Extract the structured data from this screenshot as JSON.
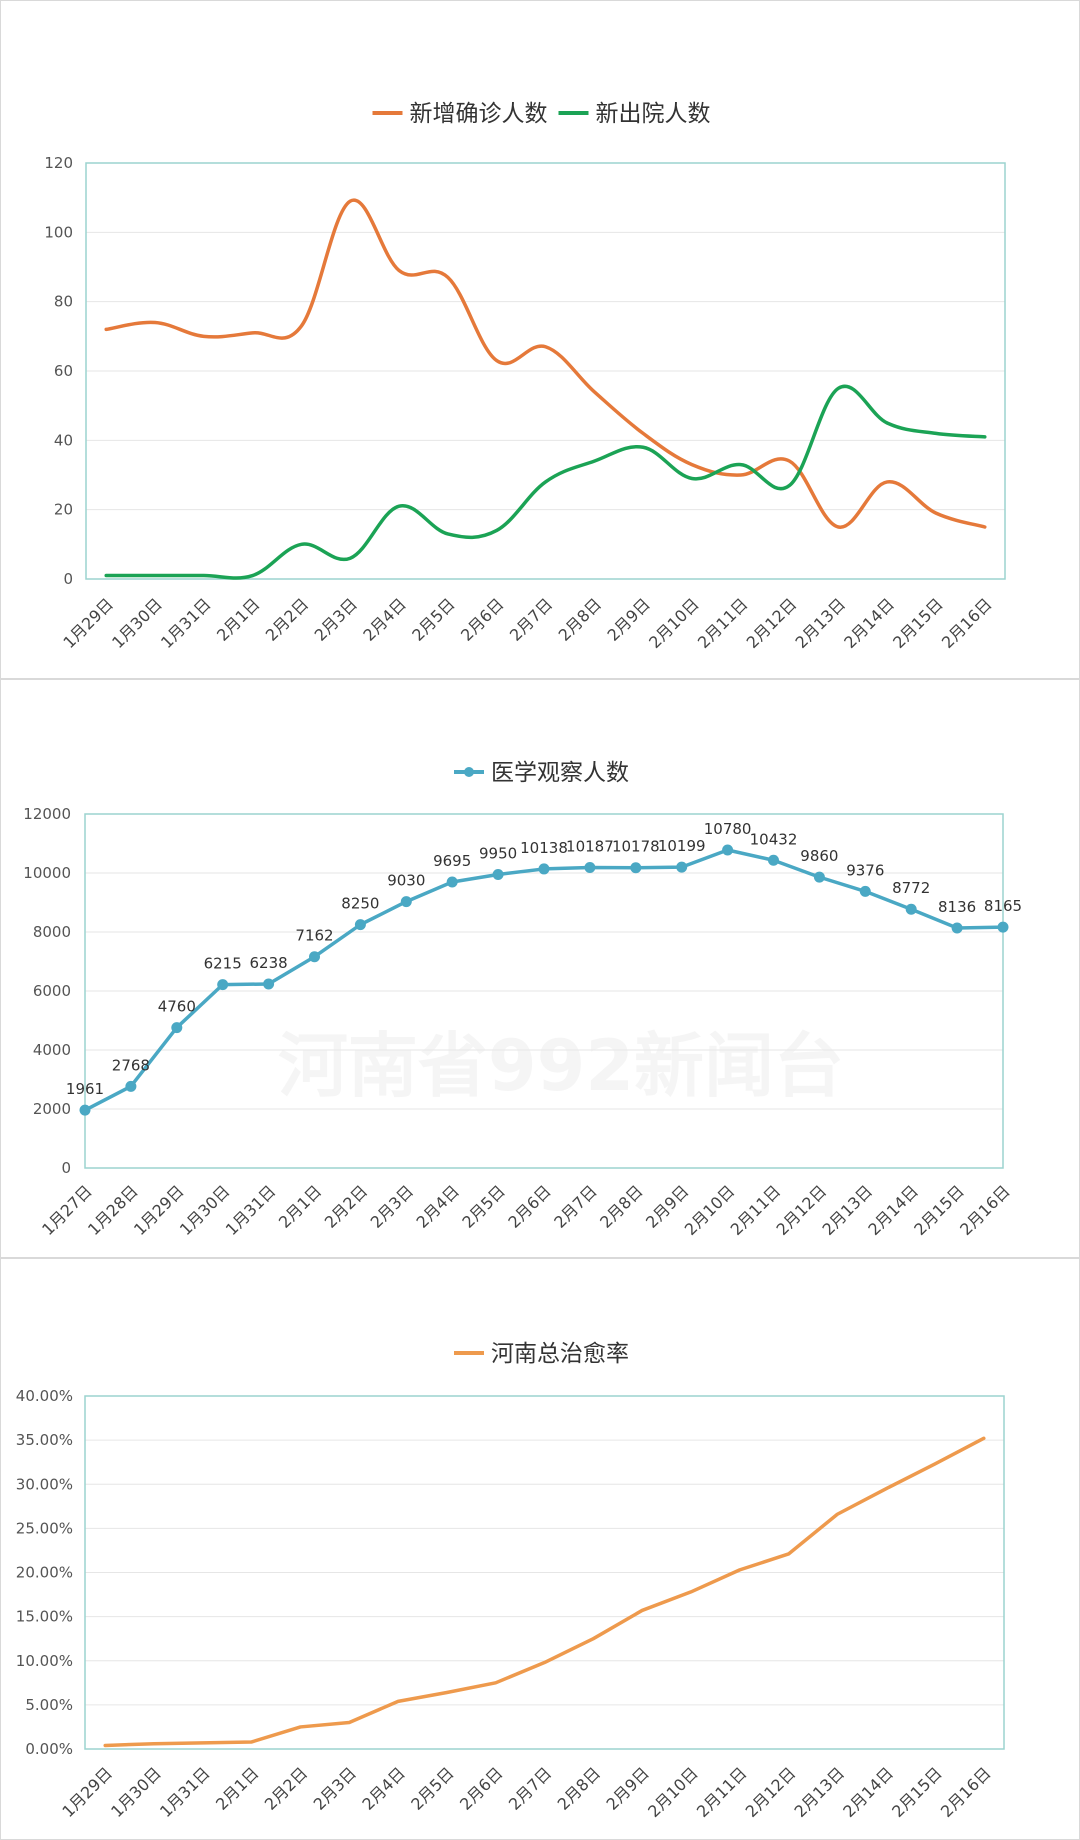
{
  "colors": {
    "orange": "#E5793A",
    "green": "#1BA355",
    "teal": "#4AA8C4",
    "light_orange": "#EE9A4D",
    "plot_border": "#9CD3CF",
    "grid": "#E6E6E6"
  },
  "watermark": "河南省992新闻台",
  "chart_data": [
    {
      "type": "line",
      "smooth": true,
      "legend_position": "top",
      "grid": true,
      "categories": [
        "1月29日",
        "1月30日",
        "1月31日",
        "2月1日",
        "2月2日",
        "2月3日",
        "2月4日",
        "2月5日",
        "2月6日",
        "2月7日",
        "2月8日",
        "2月9日",
        "2月10日",
        "2月11日",
        "2月12日",
        "2月13日",
        "2月14日",
        "2月15日",
        "2月16日"
      ],
      "yticks": [
        "0",
        "20",
        "40",
        "60",
        "80",
        "100",
        "120"
      ],
      "ylim": [
        0,
        120
      ],
      "series": [
        {
          "name": "新增确诊人数",
          "color": "#E5793A",
          "values": [
            72,
            74,
            70,
            71,
            73,
            109,
            89,
            87,
            63,
            67,
            54,
            42,
            33,
            30,
            34,
            15,
            28,
            19,
            15
          ]
        },
        {
          "name": "新出院人数",
          "color": "#1BA355",
          "values": [
            1,
            1,
            1,
            1,
            10,
            6,
            21,
            13,
            14,
            28,
            34,
            38,
            29,
            33,
            27,
            55,
            45,
            42,
            41
          ]
        }
      ]
    },
    {
      "type": "line",
      "markers": true,
      "legend_position": "top",
      "grid": true,
      "categories": [
        "1月27日",
        "1月28日",
        "1月29日",
        "1月30日",
        "1月31日",
        "2月1日",
        "2月2日",
        "2月3日",
        "2月4日",
        "2月5日",
        "2月6日",
        "2月7日",
        "2月8日",
        "2月9日",
        "2月10日",
        "2月11日",
        "2月12日",
        "2月13日",
        "2月14日",
        "2月15日",
        "2月16日"
      ],
      "yticks": [
        "0",
        "2000",
        "4000",
        "6000",
        "8000",
        "10000",
        "12000"
      ],
      "ylim": [
        0,
        12000
      ],
      "series": [
        {
          "name": "医学观察人数",
          "color": "#4AA8C4",
          "values": [
            1961,
            2768,
            4760,
            6215,
            6238,
            7162,
            8250,
            9030,
            9695,
            9950,
            10138,
            10187,
            10178,
            10199,
            10780,
            10432,
            9860,
            9376,
            8772,
            8136,
            8165
          ]
        }
      ]
    },
    {
      "type": "line",
      "legend_position": "top",
      "grid": true,
      "categories": [
        "1月29日",
        "1月30日",
        "1月31日",
        "2月1日",
        "2月2日",
        "2月3日",
        "2月4日",
        "2月5日",
        "2月6日",
        "2月7日",
        "2月8日",
        "2月9日",
        "2月10日",
        "2月11日",
        "2月12日",
        "2月13日",
        "2月14日",
        "2月15日",
        "2月16日"
      ],
      "yticks": [
        "0.00%",
        "5.00%",
        "10.00%",
        "15.00%",
        "20.00%",
        "25.00%",
        "30.00%",
        "35.00%",
        "40.00%"
      ],
      "ylim": [
        0,
        40
      ],
      "series": [
        {
          "name": "河南总治愈率",
          "color": "#EE9A4D",
          "values": [
            0.4,
            0.6,
            0.7,
            0.8,
            2.5,
            3.0,
            5.4,
            6.4,
            7.5,
            9.8,
            12.5,
            15.7,
            17.8,
            20.3,
            22.1,
            26.6,
            29.5,
            32.3,
            35.2
          ]
        }
      ]
    }
  ]
}
